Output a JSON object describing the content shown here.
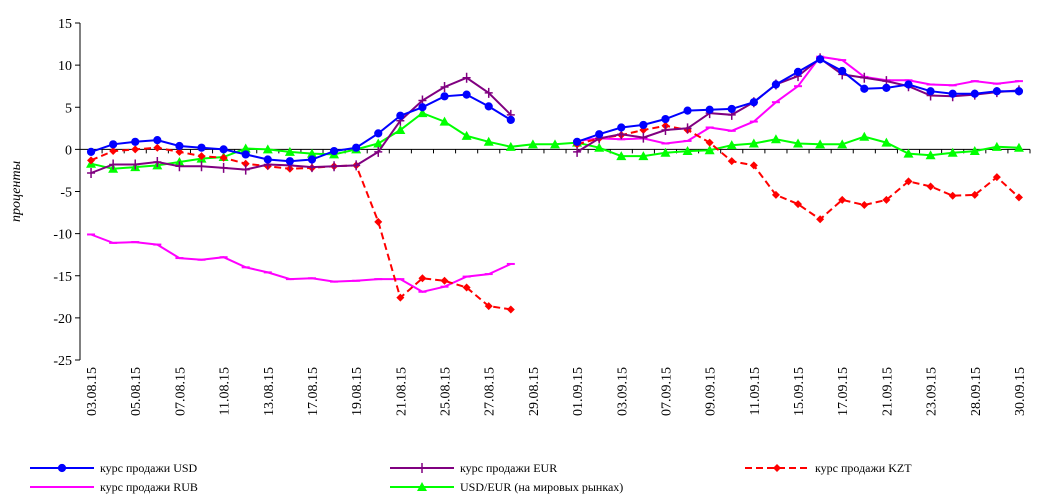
{
  "chart_data": {
    "type": "line",
    "ylabel": "проценты",
    "xlabel": "",
    "ylim": [
      -25,
      15
    ],
    "yticks": [
      -25,
      -20,
      -15,
      -10,
      -5,
      0,
      5,
      10,
      15
    ],
    "grid": false,
    "legend_position": "bottom",
    "categories": [
      "03.08.15",
      "04.08.15",
      "05.08.15",
      "06.08.15",
      "07.08.15",
      "10.08.15",
      "11.08.15",
      "12.08.15",
      "13.08.15",
      "14.08.15",
      "17.08.15",
      "18.08.15",
      "19.08.15",
      "20.08.15",
      "21.08.15",
      "24.08.15",
      "25.08.15",
      "26.08.15",
      "27.08.15",
      "28.08.15",
      "29.08.15",
      "31.08.15",
      "01.09.15",
      "02.09.15",
      "03.09.15",
      "04.09.15",
      "07.09.15",
      "08.09.15",
      "09.09.15",
      "10.09.15",
      "11.09.15",
      "14.09.15",
      "15.09.15",
      "16.09.15",
      "17.09.15",
      "18.09.15",
      "21.09.15",
      "22.09.15",
      "23.09.15",
      "24.09.15",
      "28.09.15",
      "29.09.15",
      "30.09.15"
    ],
    "tick_labels": [
      "03.08.15",
      "",
      "05.08.15",
      "",
      "07.08.15",
      "",
      "11.08.15",
      "",
      "13.08.15",
      "",
      "17.08.15",
      "",
      "19.08.15",
      "",
      "21.08.15",
      "",
      "25.08.15",
      "",
      "27.08.15",
      "",
      "29.08.15",
      "",
      "01.09.15",
      "",
      "03.09.15",
      "",
      "07.09.15",
      "",
      "09.09.15",
      "",
      "11.09.15",
      "",
      "15.09.15",
      "",
      "17.09.15",
      "",
      "21.09.15",
      "",
      "23.09.15",
      "",
      "28.09.15",
      "",
      "30.09.15"
    ],
    "series": [
      {
        "name": "курс продажи USD",
        "color": "#0000ff",
        "dash": "",
        "marker": "circle",
        "values": [
          -0.3,
          0.6,
          0.9,
          1.1,
          0.4,
          0.2,
          0.0,
          -0.6,
          -1.2,
          -1.4,
          -1.2,
          -0.2,
          0.2,
          1.9,
          4.0,
          5.0,
          6.3,
          6.5,
          5.1,
          3.5,
          null,
          null,
          0.9,
          1.8,
          2.6,
          2.9,
          3.6,
          4.6,
          4.7,
          4.8,
          5.6,
          7.7,
          9.2,
          10.7,
          9.3,
          7.2,
          7.3,
          7.7,
          6.9,
          6.6,
          6.6,
          6.9,
          6.9
        ]
      },
      {
        "name": "курс продажи EUR",
        "color": "#800080",
        "dash": "",
        "marker": "plus",
        "values": [
          -2.8,
          -1.8,
          -1.8,
          -1.5,
          -2.0,
          -2.0,
          -2.2,
          -2.4,
          -1.8,
          -1.9,
          -2.1,
          -2.0,
          -1.9,
          -0.3,
          3.4,
          5.8,
          7.4,
          8.5,
          6.7,
          4.1,
          null,
          null,
          -0.3,
          1.3,
          1.8,
          1.4,
          2.3,
          2.5,
          4.3,
          4.1,
          5.6,
          7.7,
          8.7,
          10.8,
          8.9,
          8.5,
          8.1,
          7.5,
          6.4,
          6.3,
          6.5,
          6.8,
          7.0
        ]
      },
      {
        "name": "курс продажи KZT",
        "color": "#ff0000",
        "dash": "7,4",
        "marker": "diamond",
        "values": [
          -1.3,
          -0.2,
          0.0,
          0.2,
          -0.3,
          -0.8,
          -1.0,
          -1.7,
          -2.0,
          -2.3,
          -2.2,
          -2.0,
          -1.9,
          -8.6,
          -17.6,
          -15.3,
          -15.6,
          -16.4,
          -18.6,
          -19.0,
          null,
          null,
          0.6,
          1.3,
          1.7,
          2.3,
          2.8,
          2.3,
          0.8,
          -1.4,
          -1.9,
          -5.4,
          -6.5,
          -8.3,
          -6.0,
          -6.6,
          -6.0,
          -3.8,
          -4.4,
          -5.5,
          -5.4,
          -3.3,
          -5.7
        ]
      },
      {
        "name": "курс продажи RUB",
        "color": "#ff00ff",
        "dash": "",
        "marker": "dash",
        "values": [
          -10.1,
          -11.1,
          -11.0,
          -11.3,
          -12.9,
          -13.1,
          -12.8,
          -14.0,
          -14.6,
          -15.4,
          -15.3,
          -15.7,
          -15.6,
          -15.4,
          -15.4,
          -16.9,
          -16.3,
          -15.1,
          -14.8,
          -13.6,
          null,
          null,
          1.0,
          1.3,
          1.2,
          1.3,
          0.7,
          1.0,
          2.6,
          2.2,
          3.3,
          5.6,
          7.5,
          11.0,
          10.6,
          8.6,
          8.2,
          8.2,
          7.7,
          7.6,
          8.1,
          7.8,
          8.1
        ]
      },
      {
        "name": "USD/EUR (на мировых рынках)",
        "color": "#00ff00",
        "dash": "",
        "marker": "triangle",
        "values": [
          -1.7,
          -2.3,
          -2.1,
          -1.9,
          -1.5,
          -1.1,
          -0.9,
          0.1,
          0.0,
          -0.3,
          -0.5,
          -0.6,
          0.0,
          0.7,
          2.3,
          4.3,
          3.3,
          1.6,
          0.9,
          0.3,
          0.6,
          0.6,
          0.8,
          0.2,
          -0.8,
          -0.8,
          -0.4,
          -0.2,
          -0.1,
          0.5,
          0.7,
          1.2,
          0.7,
          0.6,
          0.6,
          1.5,
          0.8,
          -0.5,
          -0.7,
          -0.4,
          -0.2,
          0.3,
          0.2
        ]
      }
    ]
  }
}
